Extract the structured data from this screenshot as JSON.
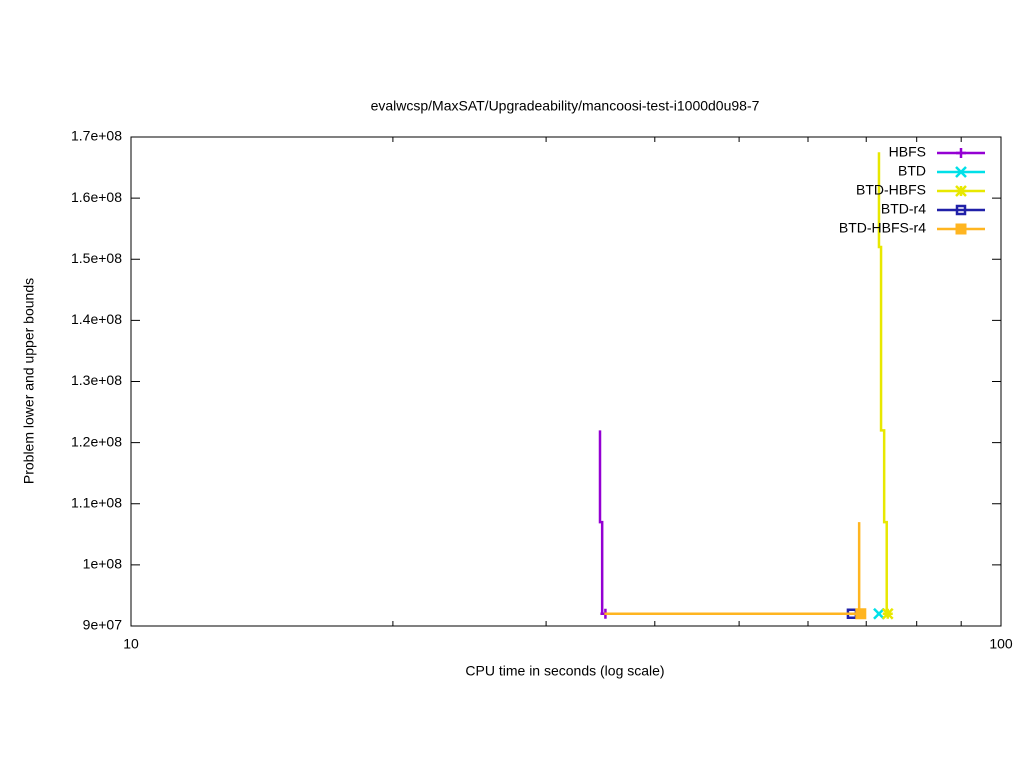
{
  "chart_data": {
    "type": "line",
    "title": "evalwcsp/MaxSAT/Upgradeability/mancoosi-test-i1000d0u98-7",
    "x_label": "CPU time in seconds (log scale)",
    "y_label": "Problem lower and upper bounds",
    "xscale": "log",
    "xlim": [
      10,
      100
    ],
    "xticks": [
      10,
      100
    ],
    "xminorticks": [
      20,
      30,
      40,
      50,
      60,
      70,
      80,
      90
    ],
    "ylim": [
      90000000,
      170000000
    ],
    "yticks": [
      {
        "value": 90000000,
        "label": "9e+07"
      },
      {
        "value": 100000000,
        "label": "1e+08"
      },
      {
        "value": 110000000,
        "label": "1.1e+08"
      },
      {
        "value": 120000000,
        "label": "1.2e+08"
      },
      {
        "value": 130000000,
        "label": "1.3e+08"
      },
      {
        "value": 140000000,
        "label": "1.4e+08"
      },
      {
        "value": 150000000,
        "label": "1.5e+08"
      },
      {
        "value": 160000000,
        "label": "1.6e+08"
      },
      {
        "value": 170000000,
        "label": "1.7e+08"
      }
    ],
    "grid": false,
    "legend": "top-right",
    "series": [
      {
        "name": "HBFS",
        "color": "#9400d3",
        "marker": "plus",
        "x": [
          34.6,
          34.6,
          34.8,
          34.8,
          35.1
        ],
        "y": [
          122000000,
          107000000,
          107000000,
          92000000,
          92000000
        ]
      },
      {
        "name": "BTD",
        "color": "#00e0e8",
        "marker": "cross",
        "x": [
          72.0,
          72.4
        ],
        "y": [
          92000000,
          92000000
        ]
      },
      {
        "name": "BTD-HBFS",
        "color": "#e8e800",
        "marker": "star",
        "x": [
          72.4,
          72.4,
          72.8,
          72.8,
          73.4,
          73.4,
          73.9,
          73.9,
          74.1
        ],
        "y": [
          167500000,
          152000000,
          152000000,
          122000000,
          122000000,
          107000000,
          107000000,
          92000000,
          92000000
        ]
      },
      {
        "name": "BTD-r4",
        "color": "#2020a8",
        "marker": "square-open",
        "x": [
          67.2,
          67.4
        ],
        "y": [
          92000000,
          92000000
        ]
      },
      {
        "name": "BTD-HBFS-r4",
        "color": "#ffb520",
        "marker": "square",
        "x": [
          35.0,
          68.7,
          null,
          68.7,
          68.7,
          69.0
        ],
        "y": [
          92000000,
          92000000,
          null,
          107000000,
          92000000,
          92000000
        ]
      }
    ]
  }
}
